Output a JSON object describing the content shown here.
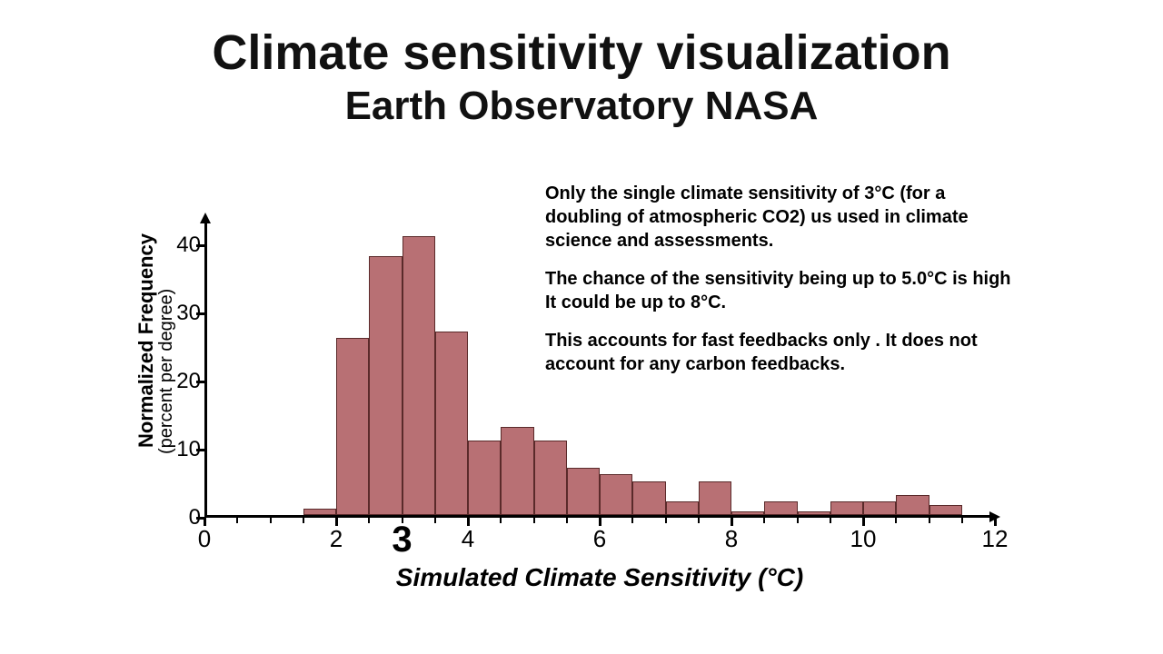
{
  "title": "Climate sensitivity visualization",
  "subtitle": "Earth Observatory NASA",
  "paragraphs": [
    "Only the single climate sensitivity of 3°C (for a doubling of atmospheric CO2) us used in climate science and assessments.",
    "The chance of the sensitivity being up to 5.0°C is high It could be up to 8°C.",
    "This accounts for fast feedbacks only . It does not account for any carbon feedbacks."
  ],
  "chart": {
    "type": "histogram",
    "y_title": "Normalized Frequency",
    "y_sub": "(percent per degree)",
    "x_title": "Simulated Climate Sensitivity (°C)",
    "xlim": [
      0,
      12
    ],
    "ylim": [
      0,
      44
    ],
    "y_ticks": [
      0,
      10,
      20,
      30,
      40
    ],
    "x_major_ticks": [
      0,
      2,
      4,
      6,
      8,
      10,
      12
    ],
    "x_major_labels": [
      "0",
      "2",
      "4",
      "6",
      "8",
      "10",
      "12"
    ],
    "emphasis_label": "3",
    "emphasis_x": 3,
    "x_minor_step": 0.5,
    "bar_color": "#b87074",
    "bar_border": "#5a2a2a",
    "background_color": "#ffffff",
    "axis_color": "#000000",
    "title_fontsize": 54,
    "subtitle_fontsize": 44,
    "body_fontsize": 20,
    "axis_label_fontsize": 26,
    "bar_width": 0.5,
    "bars": [
      {
        "x": 1.5,
        "h": 1
      },
      {
        "x": 2.0,
        "h": 26
      },
      {
        "x": 2.5,
        "h": 38
      },
      {
        "x": 3.0,
        "h": 41
      },
      {
        "x": 3.5,
        "h": 27
      },
      {
        "x": 4.0,
        "h": 11
      },
      {
        "x": 4.5,
        "h": 13
      },
      {
        "x": 5.0,
        "h": 11
      },
      {
        "x": 5.5,
        "h": 7
      },
      {
        "x": 6.0,
        "h": 6
      },
      {
        "x": 6.5,
        "h": 5
      },
      {
        "x": 7.0,
        "h": 2
      },
      {
        "x": 7.5,
        "h": 5
      },
      {
        "x": 8.0,
        "h": 0.5
      },
      {
        "x": 8.5,
        "h": 2
      },
      {
        "x": 9.0,
        "h": 0.5
      },
      {
        "x": 9.5,
        "h": 2
      },
      {
        "x": 10.0,
        "h": 2
      },
      {
        "x": 10.5,
        "h": 3
      },
      {
        "x": 11.0,
        "h": 1.5
      }
    ]
  }
}
